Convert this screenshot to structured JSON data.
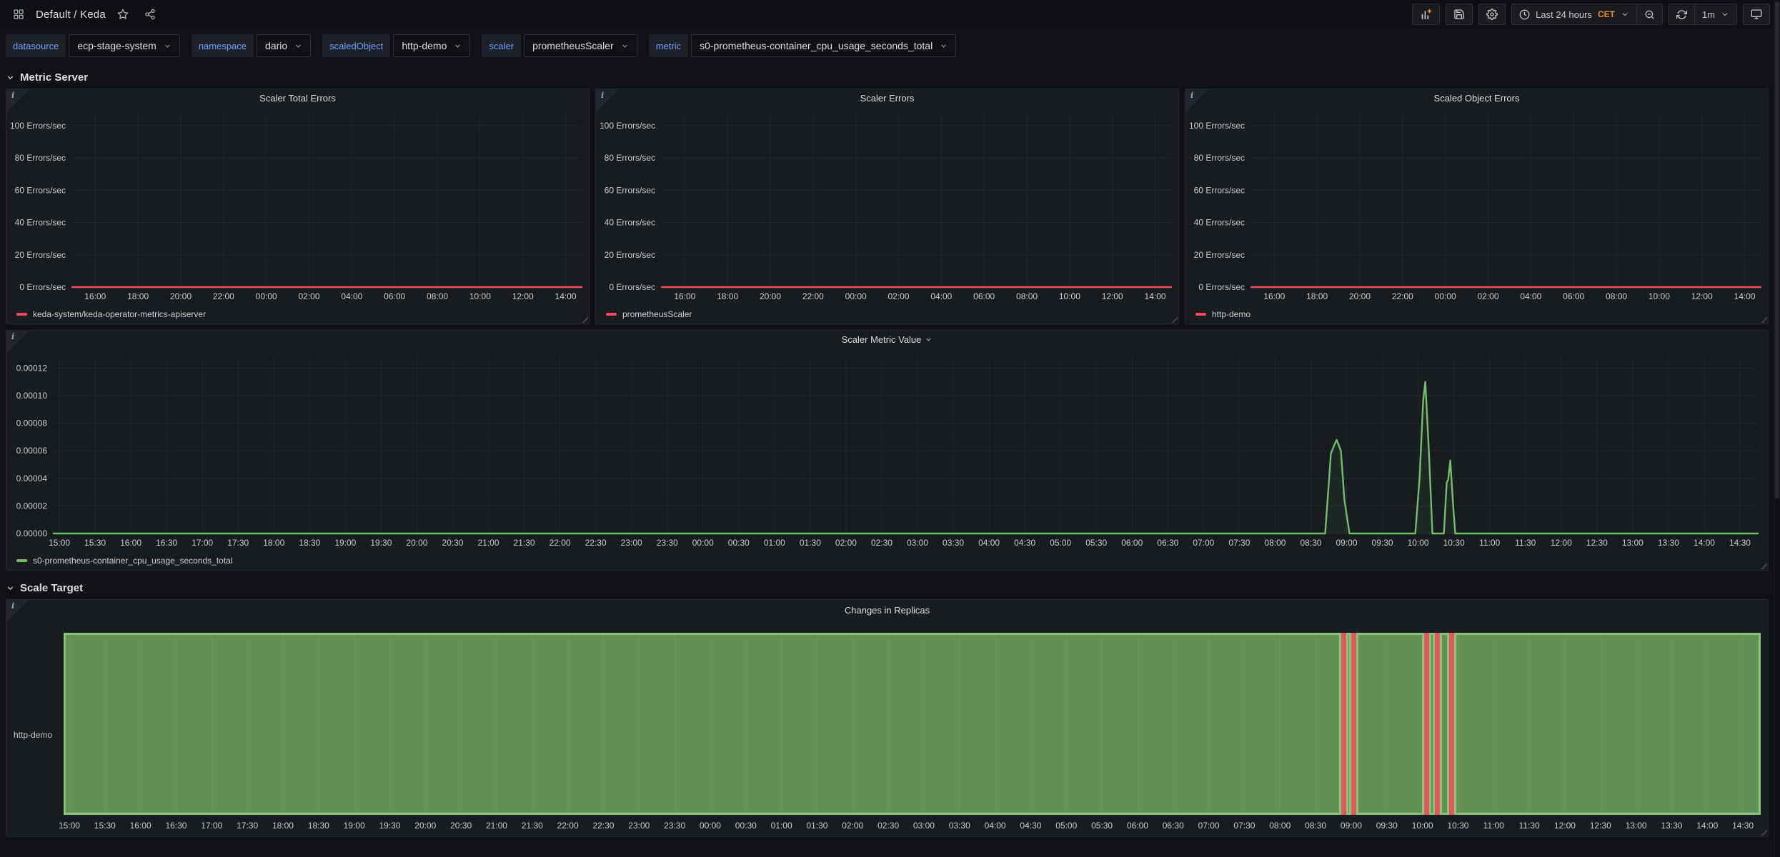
{
  "header": {
    "breadcrumb": "Default / Keda",
    "toolbar": {
      "time_range": "Last 24 hours",
      "timezone": "CET",
      "refresh_interval": "1m"
    }
  },
  "icons": {
    "apps-grid-icon": "dashboard grid glyph",
    "star-icon": "favorite star outline",
    "share-icon": "share-alt nodes",
    "add-panel-icon": "bar chart with orange plus",
    "save-dashboard-icon": "floppy disk",
    "settings-gear-icon": "gear",
    "clock-icon": "clock face",
    "chevron-down-icon": "chevron down",
    "zoom-out-icon": "magnifier with minus",
    "refresh-icon": "circular sync arrows",
    "kiosk-monitor-icon": "monitor display",
    "panel-info-icon": "italic i in folded corner",
    "accent_orange": "#EB8B2D"
  },
  "variables": [
    {
      "label": "datasource",
      "value": "ecp-stage-system"
    },
    {
      "label": "namespace",
      "value": "dario"
    },
    {
      "label": "scaledObject",
      "value": "http-demo"
    },
    {
      "label": "scaler",
      "value": "prometheusScaler"
    },
    {
      "label": "metric",
      "value": "s0-prometheus-container_cpu_usage_seconds_total"
    }
  ],
  "sections": {
    "metric_server": "Metric Server",
    "scale_target": "Scale Target"
  },
  "chart_data": [
    {
      "type": "line",
      "title": "Scaler Total Errors",
      "xlabel": "",
      "ylabel": "",
      "xlim": [
        14.92,
        38.75
      ],
      "ylim": [
        0,
        107
      ],
      "grid": true,
      "legend_position": "bottom-left",
      "yticks": [
        0,
        20,
        40,
        60,
        80,
        100
      ],
      "ytick_suffix": " Errors/sec",
      "xticks": {
        "start": 16,
        "step": 2,
        "labels": [
          "16:00",
          "18:00",
          "20:00",
          "22:00",
          "00:00",
          "02:00",
          "04:00",
          "06:00",
          "08:00",
          "10:00",
          "12:00",
          "14:00"
        ]
      },
      "series": [
        {
          "name": "keda-system/keda-operator-metrics-apiserver",
          "color": "#F2495C",
          "points": [
            [
              14.92,
              0
            ],
            [
              38.75,
              0
            ]
          ]
        }
      ]
    },
    {
      "type": "line",
      "title": "Scaler Errors",
      "xlabel": "",
      "ylabel": "",
      "xlim": [
        14.92,
        38.75
      ],
      "ylim": [
        0,
        107
      ],
      "grid": true,
      "legend_position": "bottom-left",
      "yticks": [
        0,
        20,
        40,
        60,
        80,
        100
      ],
      "ytick_suffix": " Errors/sec",
      "xticks": {
        "start": 16,
        "step": 2,
        "labels": [
          "16:00",
          "18:00",
          "20:00",
          "22:00",
          "00:00",
          "02:00",
          "04:00",
          "06:00",
          "08:00",
          "10:00",
          "12:00",
          "14:00"
        ]
      },
      "series": [
        {
          "name": "prometheusScaler",
          "color": "#F2495C",
          "points": [
            [
              14.92,
              0
            ],
            [
              38.75,
              0
            ]
          ]
        }
      ]
    },
    {
      "type": "line",
      "title": "Scaled Object Errors",
      "xlabel": "",
      "ylabel": "",
      "xlim": [
        14.92,
        38.75
      ],
      "ylim": [
        0,
        107
      ],
      "grid": true,
      "legend_position": "bottom-left",
      "yticks": [
        0,
        20,
        40,
        60,
        80,
        100
      ],
      "ytick_suffix": " Errors/sec",
      "xticks": {
        "start": 16,
        "step": 2,
        "labels": [
          "16:00",
          "18:00",
          "20:00",
          "22:00",
          "00:00",
          "02:00",
          "04:00",
          "06:00",
          "08:00",
          "10:00",
          "12:00",
          "14:00"
        ]
      },
      "series": [
        {
          "name": "http-demo",
          "color": "#F2495C",
          "points": [
            [
              14.92,
              0
            ],
            [
              38.75,
              0
            ]
          ]
        }
      ]
    },
    {
      "type": "line",
      "title": "Scaler Metric Value",
      "xlabel": "",
      "ylabel": "",
      "xlim": [
        14.92,
        38.75
      ],
      "ylim": [
        0,
        0.000128
      ],
      "grid": true,
      "legend_position": "bottom-left",
      "yticks": [
        0,
        2e-05,
        4e-05,
        6e-05,
        8e-05,
        0.0001,
        0.00012
      ],
      "ytick_labels": [
        "0.00000",
        "0.00002",
        "0.00004",
        "0.00006",
        "0.00008",
        "0.00010",
        "0.00012"
      ],
      "xticks": {
        "start": 15,
        "step": 0.5,
        "labels": [
          "15:00",
          "15:30",
          "16:00",
          "16:30",
          "17:00",
          "17:30",
          "18:00",
          "18:30",
          "19:00",
          "19:30",
          "20:00",
          "20:30",
          "21:00",
          "21:30",
          "22:00",
          "22:30",
          "23:00",
          "23:30",
          "00:00",
          "00:30",
          "01:00",
          "01:30",
          "02:00",
          "02:30",
          "03:00",
          "03:30",
          "04:00",
          "04:30",
          "05:00",
          "05:30",
          "06:00",
          "06:30",
          "07:00",
          "07:30",
          "08:00",
          "08:30",
          "09:00",
          "09:30",
          "10:00",
          "10:30",
          "11:00",
          "11:30",
          "12:00",
          "12:30",
          "13:00",
          "13:30",
          "14:00",
          "14:30"
        ]
      },
      "series": [
        {
          "name": "s0-prometheus-container_cpu_usage_seconds_total",
          "color": "#73BF69",
          "fill": "rgba(115,191,105,0.08)",
          "points": [
            [
              14.92,
              0
            ],
            [
              32.7,
              0
            ],
            [
              32.78,
              5.8e-05
            ],
            [
              32.81,
              6.2e-05
            ],
            [
              32.86,
              6.8e-05
            ],
            [
              32.92,
              6e-05
            ],
            [
              32.97,
              2.4e-05
            ],
            [
              33.04,
              0
            ],
            [
              33.96,
              0
            ],
            [
              34.02,
              4e-05
            ],
            [
              34.07,
              9.6e-05
            ],
            [
              34.1,
              0.00011
            ],
            [
              34.15,
              6e-05
            ],
            [
              34.2,
              0
            ],
            [
              34.36,
              0
            ],
            [
              34.4,
              3.7e-05
            ],
            [
              34.42,
              3.9e-05
            ],
            [
              34.45,
              5.3e-05
            ],
            [
              34.49,
              2e-05
            ],
            [
              34.52,
              0
            ],
            [
              38.75,
              0
            ]
          ]
        }
      ]
    },
    {
      "type": "timeline",
      "title": "Changes in Replicas",
      "xlim": [
        14.92,
        38.75
      ],
      "grid": true,
      "colors": {
        "green_fill": "#609155",
        "green_border": "#8CC17A",
        "red_fill": "#E2565F"
      },
      "xticks": {
        "start": 15,
        "step": 0.5,
        "labels": [
          "15:00",
          "15:30",
          "16:00",
          "16:30",
          "17:00",
          "17:30",
          "18:00",
          "18:30",
          "19:00",
          "19:30",
          "20:00",
          "20:30",
          "21:00",
          "21:30",
          "22:00",
          "22:30",
          "23:00",
          "23:30",
          "00:00",
          "00:30",
          "01:00",
          "01:30",
          "02:00",
          "02:30",
          "03:00",
          "03:30",
          "04:00",
          "04:30",
          "05:00",
          "05:30",
          "06:00",
          "06:30",
          "07:00",
          "07:30",
          "08:00",
          "08:30",
          "09:00",
          "09:30",
          "10:00",
          "10:30",
          "11:00",
          "11:30",
          "12:00",
          "12:30",
          "13:00",
          "13:30",
          "14:00",
          "14:30"
        ]
      },
      "rows": [
        {
          "label": "http-demo",
          "segments": [
            {
              "state": "green",
              "start": 14.92,
              "end": 32.86
            },
            {
              "state": "red",
              "start": 32.86,
              "end": 32.93
            },
            {
              "state": "green",
              "start": 32.93,
              "end": 33.0
            },
            {
              "state": "red",
              "start": 33.0,
              "end": 33.07
            },
            {
              "state": "green",
              "start": 33.07,
              "end": 34.02
            },
            {
              "state": "red",
              "start": 34.02,
              "end": 34.09
            },
            {
              "state": "green",
              "start": 34.09,
              "end": 34.17
            },
            {
              "state": "red",
              "start": 34.17,
              "end": 34.24
            },
            {
              "state": "green",
              "start": 34.24,
              "end": 34.38
            },
            {
              "state": "red",
              "start": 34.38,
              "end": 34.45
            },
            {
              "state": "green",
              "start": 34.45,
              "end": 38.75
            }
          ]
        }
      ]
    }
  ]
}
